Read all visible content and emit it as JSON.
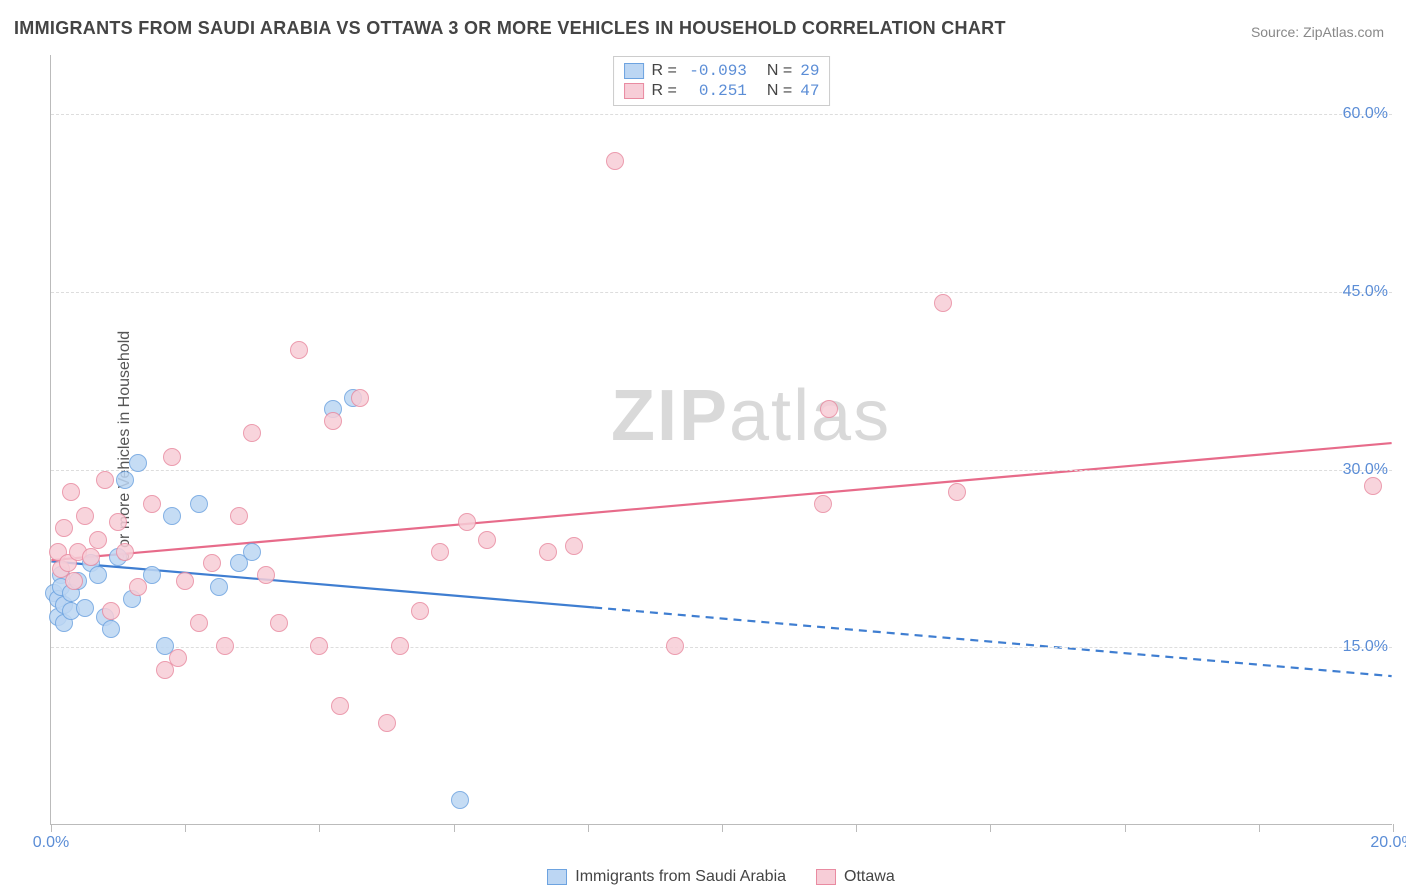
{
  "title": "IMMIGRANTS FROM SAUDI ARABIA VS OTTAWA 3 OR MORE VEHICLES IN HOUSEHOLD CORRELATION CHART",
  "source": "Source: ZipAtlas.com",
  "ylabel": "3 or more Vehicles in Household",
  "watermark": {
    "a": "ZIP",
    "b": "atlas"
  },
  "chart": {
    "type": "scatter",
    "background_color": "#ffffff",
    "grid_color": "#dddddd",
    "axis_color": "#bbbbbb",
    "tick_label_color": "#5b8dd6",
    "tick_fontsize": 16,
    "xlim": [
      0,
      20
    ],
    "ylim": [
      0,
      65
    ],
    "yticks": [
      15,
      30,
      45,
      60
    ],
    "ytick_labels": [
      "15.0%",
      "30.0%",
      "45.0%",
      "60.0%"
    ],
    "xticks": [
      0,
      2,
      4,
      6,
      8,
      10,
      12,
      14,
      16,
      18,
      20
    ],
    "xtick_labels": {
      "0": "0.0%",
      "20": "20.0%"
    },
    "point_radius": 9,
    "series": [
      {
        "key": "saudi",
        "label": "Immigrants from Saudi Arabia",
        "fill": "#bcd6f3",
        "stroke": "#6da3e0",
        "R": "-0.093",
        "N": "29",
        "trend": {
          "solid": {
            "x1": 0.0,
            "y1": 22.2,
            "x2": 8.1,
            "y2": 18.3
          },
          "dashed": {
            "x1": 8.1,
            "y1": 18.3,
            "x2": 20.0,
            "y2": 12.5
          },
          "color": "#3f7ed1",
          "width": 2.2
        },
        "points": [
          [
            0.05,
            19.5
          ],
          [
            0.1,
            19
          ],
          [
            0.1,
            17.5
          ],
          [
            0.15,
            21
          ],
          [
            0.15,
            20
          ],
          [
            0.2,
            18.5
          ],
          [
            0.2,
            17
          ],
          [
            0.3,
            19.5
          ],
          [
            0.3,
            18
          ],
          [
            0.4,
            20.5
          ],
          [
            0.5,
            18.2
          ],
          [
            0.6,
            22
          ],
          [
            0.7,
            21
          ],
          [
            0.8,
            17.5
          ],
          [
            0.9,
            16.5
          ],
          [
            1.0,
            22.5
          ],
          [
            1.1,
            29
          ],
          [
            1.2,
            19
          ],
          [
            1.3,
            30.5
          ],
          [
            1.5,
            21
          ],
          [
            1.7,
            15
          ],
          [
            1.8,
            26
          ],
          [
            2.2,
            27
          ],
          [
            2.5,
            20
          ],
          [
            2.8,
            22
          ],
          [
            3.0,
            23
          ],
          [
            4.2,
            35
          ],
          [
            4.5,
            36
          ],
          [
            6.1,
            2
          ]
        ]
      },
      {
        "key": "ottawa",
        "label": "Ottawa",
        "fill": "#f7cdd7",
        "stroke": "#e98ba1",
        "R": "0.251",
        "N": "47",
        "trend": {
          "solid": {
            "x1": 0.0,
            "y1": 22.3,
            "x2": 20.0,
            "y2": 32.2
          },
          "color": "#e76b8a",
          "width": 2.2
        },
        "points": [
          [
            0.1,
            23
          ],
          [
            0.15,
            21.5
          ],
          [
            0.2,
            25
          ],
          [
            0.25,
            22
          ],
          [
            0.3,
            28
          ],
          [
            0.35,
            20.5
          ],
          [
            0.4,
            23
          ],
          [
            0.5,
            26
          ],
          [
            0.6,
            22.5
          ],
          [
            0.7,
            24
          ],
          [
            0.8,
            29
          ],
          [
            0.9,
            18
          ],
          [
            1.0,
            25.5
          ],
          [
            1.1,
            23
          ],
          [
            1.3,
            20
          ],
          [
            1.5,
            27
          ],
          [
            1.7,
            13
          ],
          [
            1.8,
            31
          ],
          [
            1.9,
            14
          ],
          [
            2.0,
            20.5
          ],
          [
            2.2,
            17
          ],
          [
            2.4,
            22
          ],
          [
            2.6,
            15
          ],
          [
            2.8,
            26
          ],
          [
            3.0,
            33
          ],
          [
            3.2,
            21
          ],
          [
            3.4,
            17
          ],
          [
            3.7,
            40
          ],
          [
            4.0,
            15
          ],
          [
            4.2,
            34
          ],
          [
            4.3,
            10
          ],
          [
            4.6,
            36
          ],
          [
            5.0,
            8.5
          ],
          [
            5.2,
            15
          ],
          [
            5.5,
            18
          ],
          [
            5.8,
            23
          ],
          [
            6.2,
            25.5
          ],
          [
            6.5,
            24
          ],
          [
            7.4,
            23
          ],
          [
            7.8,
            23.5
          ],
          [
            8.4,
            56
          ],
          [
            9.3,
            15
          ],
          [
            11.5,
            27
          ],
          [
            11.6,
            35
          ],
          [
            13.3,
            44
          ],
          [
            13.5,
            28
          ],
          [
            19.7,
            28.5
          ]
        ]
      }
    ]
  },
  "legend_top": {
    "R_label": "R =",
    "N_label": "N ="
  }
}
